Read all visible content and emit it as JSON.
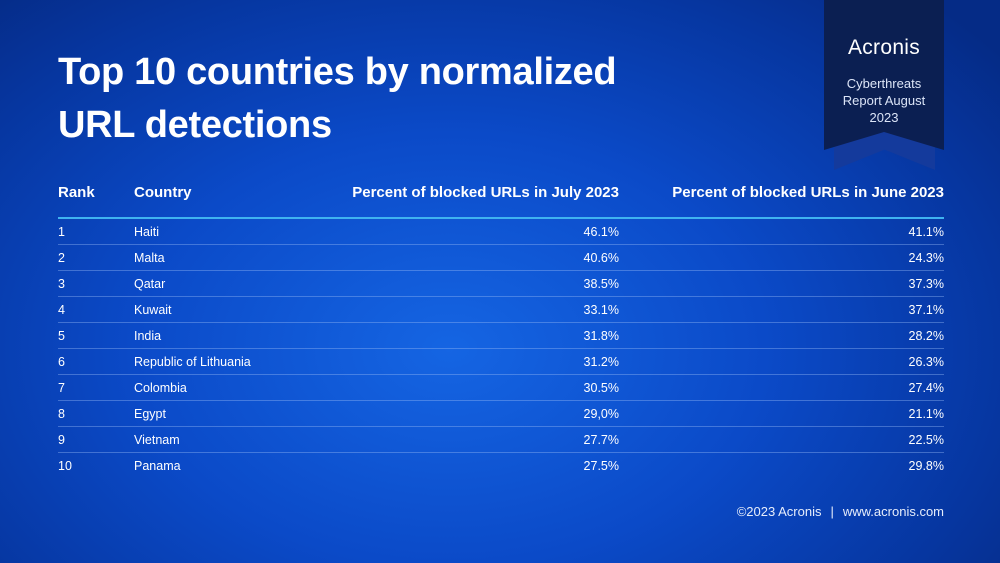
{
  "title_line1": "Top 10 countries by normalized",
  "title_line2": "URL detections",
  "badge": {
    "logo": "Acronis",
    "line1": "Cyberthreats",
    "line2": "Report August",
    "line3": "2023"
  },
  "table": {
    "headers": [
      "Rank",
      "Country",
      "Percent of blocked URLs in July 2023",
      "Percent of blocked URLs in June 2023"
    ],
    "rows": [
      [
        "1",
        "Haiti",
        "46.1%",
        "41.1%"
      ],
      [
        "2",
        "Malta",
        "40.6%",
        "24.3%"
      ],
      [
        "3",
        "Qatar",
        "38.5%",
        "37.3%"
      ],
      [
        "4",
        "Kuwait",
        "33.1%",
        "37.1%"
      ],
      [
        "5",
        "India",
        "31.8%",
        "28.2%"
      ],
      [
        "6",
        "Republic of Lithuania",
        "31.2%",
        "26.3%"
      ],
      [
        "7",
        "Colombia",
        "30.5%",
        "27.4%"
      ],
      [
        "8",
        "Egypt",
        "29,0%",
        "21.1%"
      ],
      [
        "9",
        "Vietnam",
        "27.7%",
        "22.5%"
      ],
      [
        "10",
        "Panama",
        "27.5%",
        "29.8%"
      ]
    ]
  },
  "footer": {
    "copyright": "©2023 Acronis",
    "separator": "|",
    "url": "www.acronis.com"
  }
}
